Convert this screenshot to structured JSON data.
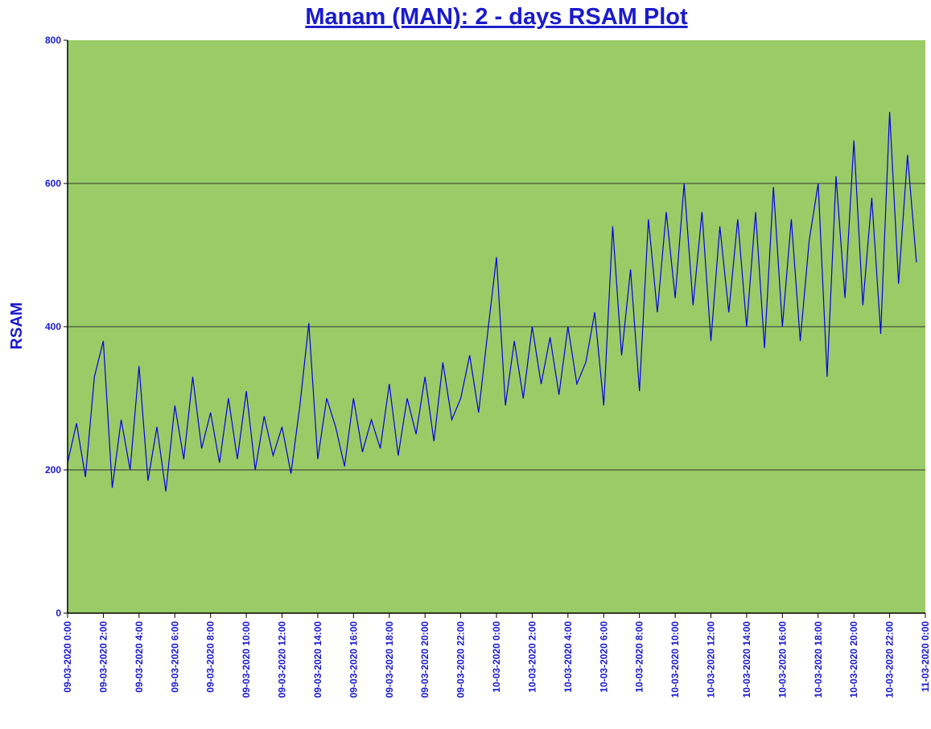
{
  "chart_data": {
    "type": "line",
    "title": "Manam (MAN): 2 - days RSAM Plot",
    "y_label": "RSAM",
    "x": [
      "09-03-2020 0:00",
      "09-03-2020 0:30",
      "09-03-2020 1:00",
      "09-03-2020 1:30",
      "09-03-2020 2:00",
      "09-03-2020 2:30",
      "09-03-2020 3:00",
      "09-03-2020 3:30",
      "09-03-2020 4:00",
      "09-03-2020 4:30",
      "09-03-2020 5:00",
      "09-03-2020 5:30",
      "09-03-2020 6:00",
      "09-03-2020 6:30",
      "09-03-2020 7:00",
      "09-03-2020 7:30",
      "09-03-2020 8:00",
      "09-03-2020 8:30",
      "09-03-2020 9:00",
      "09-03-2020 9:30",
      "09-03-2020 10:00",
      "09-03-2020 10:30",
      "09-03-2020 11:00",
      "09-03-2020 11:30",
      "09-03-2020 12:00",
      "09-03-2020 12:30",
      "09-03-2020 13:00",
      "09-03-2020 13:30",
      "09-03-2020 14:00",
      "09-03-2020 14:30",
      "09-03-2020 15:00",
      "09-03-2020 15:30",
      "09-03-2020 16:00",
      "09-03-2020 16:30",
      "09-03-2020 17:00",
      "09-03-2020 17:30",
      "09-03-2020 18:00",
      "09-03-2020 18:30",
      "09-03-2020 19:00",
      "09-03-2020 19:30",
      "09-03-2020 20:00",
      "09-03-2020 20:30",
      "09-03-2020 21:00",
      "09-03-2020 21:30",
      "09-03-2020 22:00",
      "09-03-2020 22:30",
      "09-03-2020 23:00",
      "09-03-2020 23:30",
      "10-03-2020 0:00",
      "10-03-2020 0:30",
      "10-03-2020 1:00",
      "10-03-2020 1:30",
      "10-03-2020 2:00",
      "10-03-2020 2:30",
      "10-03-2020 3:00",
      "10-03-2020 3:30",
      "10-03-2020 4:00",
      "10-03-2020 4:30",
      "10-03-2020 5:00",
      "10-03-2020 5:30",
      "10-03-2020 6:00",
      "10-03-2020 6:30",
      "10-03-2020 7:00",
      "10-03-2020 7:30",
      "10-03-2020 8:00",
      "10-03-2020 8:30",
      "10-03-2020 9:00",
      "10-03-2020 9:30",
      "10-03-2020 10:00",
      "10-03-2020 10:30",
      "10-03-2020 11:00",
      "10-03-2020 11:30",
      "10-03-2020 12:00",
      "10-03-2020 12:30",
      "10-03-2020 13:00",
      "10-03-2020 13:30",
      "10-03-2020 14:00",
      "10-03-2020 14:30",
      "10-03-2020 15:00",
      "10-03-2020 15:30",
      "10-03-2020 16:00",
      "10-03-2020 16:30",
      "10-03-2020 17:00",
      "10-03-2020 17:30",
      "10-03-2020 18:00",
      "10-03-2020 18:30",
      "10-03-2020 19:00",
      "10-03-2020 19:30",
      "10-03-2020 20:00",
      "10-03-2020 20:30",
      "10-03-2020 21:00",
      "10-03-2020 21:30",
      "10-03-2020 22:00",
      "10-03-2020 22:30",
      "10-03-2020 23:00",
      "10-03-2020 23:30"
    ],
    "series": [
      {
        "color": "#0000e6",
        "values": [
          210,
          265,
          190,
          330,
          380,
          175,
          270,
          200,
          345,
          185,
          260,
          170,
          290,
          215,
          330,
          230,
          280,
          210,
          300,
          215,
          310,
          200,
          275,
          220,
          260,
          195,
          290,
          405,
          215,
          300,
          260,
          205,
          300,
          225,
          270,
          230,
          320,
          220,
          300,
          250,
          330,
          240,
          350,
          270,
          300,
          360,
          280,
          390,
          497,
          290,
          380,
          300,
          400,
          320,
          385,
          305,
          400,
          320,
          350,
          420,
          290,
          540,
          360,
          480,
          310,
          550,
          420,
          560,
          440,
          600,
          430,
          560,
          380,
          540,
          420,
          550,
          400,
          560,
          370,
          595,
          400,
          550,
          380,
          520,
          600,
          330,
          610,
          440,
          660,
          430,
          580,
          390,
          700,
          460,
          640,
          490
        ]
      }
    ],
    "xlim": [
      "09-03-2020 0:00",
      "11-03-2020 0:00"
    ],
    "xticks": [
      "09-03-2020 0:00",
      "09-03-2020 2:00",
      "09-03-2020 4:00",
      "09-03-2020 6:00",
      "09-03-2020 8:00",
      "09-03-2020 10:00",
      "09-03-2020 12:00",
      "09-03-2020 14:00",
      "09-03-2020 16:00",
      "09-03-2020 18:00",
      "09-03-2020 20:00",
      "09-03-2020 22:00",
      "10-03-2020 0:00",
      "10-03-2020 2:00",
      "10-03-2020 4:00",
      "10-03-2020 6:00",
      "10-03-2020 8:00",
      "10-03-2020 10:00",
      "10-03-2020 12:00",
      "10-03-2020 14:00",
      "10-03-2020 16:00",
      "10-03-2020 18:00",
      "10-03-2020 20:00",
      "10-03-2020 22:00",
      "11-03-2020 0:00"
    ],
    "ylim": [
      0,
      800
    ],
    "yticks": [
      0,
      200,
      400,
      600,
      800
    ],
    "grid": true,
    "plot_background": "#99cc66"
  }
}
